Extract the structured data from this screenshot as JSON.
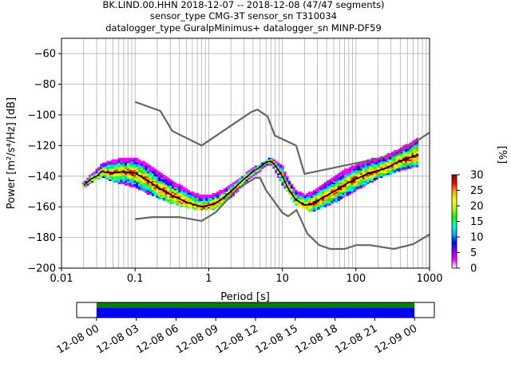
{
  "chart_data": {
    "type": "heatmap",
    "title_lines": [
      "BK.LIND.00.HHN   2018-12-07 -- 2018-12-08  (47/47 segments)",
      "sensor_type CMG-3T sensor_sn T310034",
      "datalogger_type GuralpMinimus+ datalogger_sn MINP-DF59"
    ],
    "xlabel": "Period [s]",
    "ylabel": "Power [m²/s⁴/Hz] [dB]",
    "x_scale": "log",
    "xlim": [
      0.01,
      1000
    ],
    "ylim": [
      -200,
      -50
    ],
    "x_ticks": [
      {
        "v": 0.01,
        "label": "0.01"
      },
      {
        "v": 0.1,
        "label": "0.1"
      },
      {
        "v": 1,
        "label": "1"
      },
      {
        "v": 10,
        "label": "10"
      },
      {
        "v": 100,
        "label": "100"
      },
      {
        "v": 1000,
        "label": "1000"
      }
    ],
    "y_ticks": [
      {
        "v": -60,
        "label": "−60"
      },
      {
        "v": -80,
        "label": "−80"
      },
      {
        "v": -100,
        "label": "−100"
      },
      {
        "v": -120,
        "label": "−120"
      },
      {
        "v": -140,
        "label": "−140"
      },
      {
        "v": -160,
        "label": "−160"
      },
      {
        "v": -180,
        "label": "−180"
      },
      {
        "v": -200,
        "label": "−200"
      }
    ],
    "colorbar": {
      "label": "[%]",
      "range": [
        0,
        30
      ],
      "ticks": [
        {
          "v": 0,
          "label": "0"
        },
        {
          "v": 5,
          "label": "5"
        },
        {
          "v": 10,
          "label": "10"
        },
        {
          "v": 15,
          "label": "15"
        },
        {
          "v": 20,
          "label": "20"
        },
        {
          "v": 25,
          "label": "25"
        },
        {
          "v": 30,
          "label": "30"
        }
      ],
      "colors": [
        "#ffffff",
        "#ff00ff",
        "#8800ff",
        "#0000ff",
        "#00b0ff",
        "#00ffcc",
        "#00ff00",
        "#aaff00",
        "#ffff00",
        "#ffaa00",
        "#ff0000",
        "#880000"
      ]
    },
    "mode_curve": [
      [
        0.02,
        -146
      ],
      [
        0.025,
        -142
      ],
      [
        0.03,
        -140
      ],
      [
        0.035,
        -137
      ],
      [
        0.05,
        -138
      ],
      [
        0.07,
        -137
      ],
      [
        0.1,
        -138
      ],
      [
        0.15,
        -143
      ],
      [
        0.2,
        -147
      ],
      [
        0.3,
        -152
      ],
      [
        0.5,
        -157
      ],
      [
        0.8,
        -160
      ],
      [
        1.2,
        -158
      ],
      [
        1.6,
        -154
      ],
      [
        2.2,
        -148
      ],
      [
        3,
        -142
      ],
      [
        4,
        -137
      ],
      [
        5,
        -134
      ],
      [
        6,
        -131
      ],
      [
        7,
        -130
      ],
      [
        8,
        -133
      ],
      [
        10,
        -140
      ],
      [
        12,
        -148
      ],
      [
        15,
        -155
      ],
      [
        20,
        -159
      ],
      [
        25,
        -158
      ],
      [
        30,
        -156
      ],
      [
        50,
        -150
      ],
      [
        80,
        -144
      ],
      [
        150,
        -138
      ],
      [
        250,
        -135
      ],
      [
        400,
        -130
      ],
      [
        700,
        -126
      ]
    ],
    "spread_top": [
      [
        0.02,
        -145
      ],
      [
        0.035,
        -131
      ],
      [
        0.05,
        -129
      ],
      [
        0.1,
        -129
      ],
      [
        0.15,
        -133
      ],
      [
        0.3,
        -140
      ],
      [
        0.5,
        -146
      ],
      [
        0.8,
        -150
      ],
      [
        1.2,
        -150
      ],
      [
        2.2,
        -145
      ],
      [
        4,
        -136
      ],
      [
        7,
        -129
      ],
      [
        10,
        -134
      ],
      [
        15,
        -148
      ],
      [
        25,
        -150
      ],
      [
        50,
        -140
      ],
      [
        100,
        -133
      ],
      [
        200,
        -127
      ],
      [
        400,
        -122
      ],
      [
        700,
        -115
      ]
    ],
    "spread_bottom": [
      [
        0.02,
        -147
      ],
      [
        0.035,
        -140
      ],
      [
        0.05,
        -143
      ],
      [
        0.1,
        -147
      ],
      [
        0.15,
        -151
      ],
      [
        0.3,
        -157
      ],
      [
        0.5,
        -160
      ],
      [
        0.8,
        -162
      ],
      [
        1.2,
        -161
      ],
      [
        2.2,
        -152
      ],
      [
        4,
        -140
      ],
      [
        7,
        -132
      ],
      [
        10,
        -145
      ],
      [
        15,
        -158
      ],
      [
        25,
        -163
      ],
      [
        50,
        -157
      ],
      [
        100,
        -149
      ],
      [
        200,
        -141
      ],
      [
        400,
        -136
      ],
      [
        700,
        -133
      ]
    ],
    "nhnm": [
      [
        0.1,
        -91.5
      ],
      [
        0.22,
        -97.4
      ],
      [
        0.32,
        -110.5
      ],
      [
        0.8,
        -120
      ],
      [
        3.8,
        -98
      ],
      [
        4.6,
        -96.5
      ],
      [
        6.3,
        -101
      ],
      [
        7.9,
        -113.5
      ],
      [
        15.4,
        -120
      ],
      [
        20,
        -138.5
      ],
      [
        354.8,
        -126
      ],
      [
        1000,
        -111.5
      ]
    ],
    "nlnm": [
      [
        0.1,
        -168
      ],
      [
        0.17,
        -166.7
      ],
      [
        0.4,
        -166.7
      ],
      [
        0.8,
        -169.2
      ],
      [
        1.24,
        -163.7
      ],
      [
        2.4,
        -148.6
      ],
      [
        4.3,
        -141.1
      ],
      [
        5,
        -141.1
      ],
      [
        6,
        -149
      ],
      [
        10,
        -163.8
      ],
      [
        12,
        -166.2
      ],
      [
        15.6,
        -162.1
      ],
      [
        21.9,
        -177.5
      ],
      [
        31.6,
        -185
      ],
      [
        45,
        -187.5
      ],
      [
        70,
        -187.5
      ],
      [
        101,
        -185
      ],
      [
        154,
        -185
      ],
      [
        328,
        -187.5
      ],
      [
        600,
        -184.4
      ],
      [
        1000,
        -178
      ]
    ]
  },
  "timeline": {
    "tick_labels": [
      "12-08 00",
      "12-08 03",
      "12-08 06",
      "12-08 09",
      "12-08 12",
      "12-08 15",
      "12-08 18",
      "12-08 21",
      "12-09 00"
    ],
    "xlim_hours": [
      -1.5,
      25.5
    ],
    "coverage_hours": [
      0,
      24
    ],
    "colors": {
      "data": "#0000ff",
      "used": "#008000"
    }
  }
}
